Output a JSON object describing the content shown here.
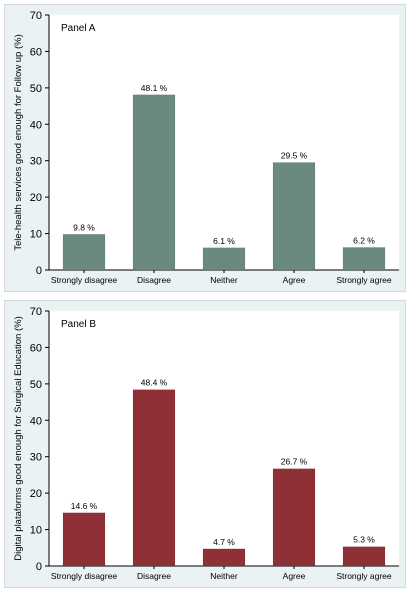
{
  "chart_data": [
    {
      "type": "bar",
      "title": "Panel A",
      "ylabel": "Tele-health services good enough for Follow up (%)",
      "xlabel": "",
      "categories": [
        "Strongly disagree",
        "Disagree",
        "Neither",
        "Agree",
        "Strongly agree"
      ],
      "values": [
        9.8,
        48.1,
        6.1,
        29.5,
        6.2
      ],
      "value_labels": [
        "9.8 %",
        "48.1 %",
        "6.1 %",
        "29.5 %",
        "6.2 %"
      ],
      "ylim": [
        0,
        70
      ],
      "yticks": [
        0,
        10,
        20,
        30,
        40,
        50,
        60,
        70
      ],
      "bar_color": "#6b8a7e",
      "grid": false,
      "legend": "none"
    },
    {
      "type": "bar",
      "title": "Panel B",
      "ylabel": "Digital plataforms good enough for Surgical Education (%)",
      "xlabel": "",
      "categories": [
        "Strongly disagree",
        "Disagree",
        "Neither",
        "Agree",
        "Strongly agree"
      ],
      "values": [
        14.6,
        48.4,
        4.7,
        26.7,
        5.3
      ],
      "value_labels": [
        "14.6 %",
        "48.4 %",
        "4.7 %",
        "26.7 %",
        "5.3 %"
      ],
      "ylim": [
        0,
        70
      ],
      "yticks": [
        0,
        10,
        20,
        30,
        40,
        50,
        60,
        70
      ],
      "bar_color": "#8f2f36",
      "grid": false,
      "legend": "none"
    }
  ]
}
